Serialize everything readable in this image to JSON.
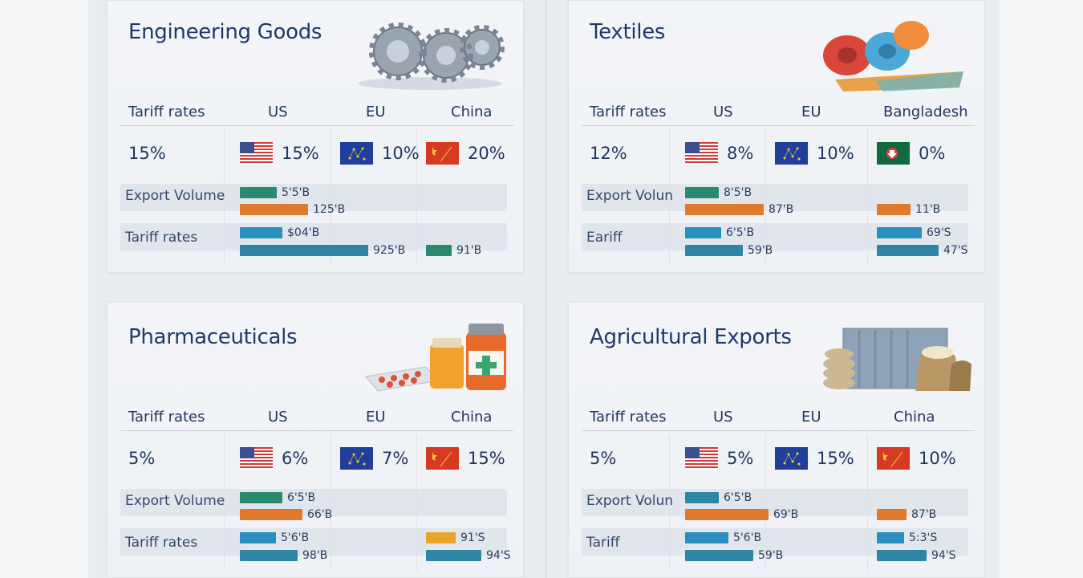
{
  "colors": {
    "title": "#1f3a68",
    "green": "#2a8a6e",
    "orange": "#e07a2a",
    "blue": "#2a8fc0",
    "teal": "#2e86a4",
    "yellow": "#e8a52a"
  },
  "cards": [
    {
      "title": "Engineering Goods",
      "illustration": "gears-icon",
      "header_label": "Tariff rates",
      "columns": [
        "US",
        "EU",
        "China"
      ],
      "base_rate": "15%",
      "flags": [
        {
          "icon": "us-flag-icon",
          "rate": "15%"
        },
        {
          "icon": "eu-flag-icon",
          "rate": "10%"
        },
        {
          "icon": "china-flag-icon",
          "rate": "20%"
        }
      ],
      "row_labels": [
        "Export Volume",
        "Tariff rates"
      ],
      "bars": [
        {
          "col": 0,
          "slot": 0,
          "level": 0.29,
          "color": "green",
          "label": "5'5'B"
        },
        {
          "col": 0,
          "slot": 1,
          "level": 0.53,
          "color": "orange",
          "label": "125'B"
        },
        {
          "col": 0,
          "slot": 2,
          "level": 0.33,
          "color": "blue",
          "label": "$04'B"
        },
        {
          "col": 0,
          "slot": 3,
          "level": 1.0,
          "color": "teal",
          "label": "925'B"
        },
        {
          "col": 2,
          "slot": 3,
          "level": 0.2,
          "color": "green",
          "label": "91'B"
        }
      ]
    },
    {
      "title": "Textiles",
      "illustration": "fabric-rolls-icon",
      "header_label": "Tariff rates",
      "columns": [
        "US",
        "EU",
        "Bangladesh"
      ],
      "base_rate": "12%",
      "flags": [
        {
          "icon": "us-flag-icon",
          "rate": "8%"
        },
        {
          "icon": "eu-flag-icon",
          "rate": "10%"
        },
        {
          "icon": "bangladesh-flag-icon",
          "rate": "0%"
        }
      ],
      "row_labels": [
        "Export Volun",
        "Eariff"
      ],
      "bars": [
        {
          "col": 0,
          "slot": 0,
          "level": 0.26,
          "color": "green",
          "label": "8'5'B"
        },
        {
          "col": 0,
          "slot": 1,
          "level": 0.61,
          "color": "orange",
          "label": "87'B"
        },
        {
          "col": 0,
          "slot": 2,
          "level": 0.28,
          "color": "blue",
          "label": "6'5'B"
        },
        {
          "col": 0,
          "slot": 3,
          "level": 0.45,
          "color": "teal",
          "label": "59'B"
        },
        {
          "col": 2,
          "slot": 1,
          "level": 0.26,
          "color": "orange",
          "label": "11'B"
        },
        {
          "col": 2,
          "slot": 2,
          "level": 0.35,
          "color": "blue",
          "label": "69'S"
        },
        {
          "col": 2,
          "slot": 3,
          "level": 0.48,
          "color": "teal",
          "label": "47'S"
        }
      ]
    },
    {
      "title": "Pharmaceuticals",
      "illustration": "medicine-bottles-icon",
      "header_label": "Tariff rates",
      "columns": [
        "US",
        "EU",
        "China"
      ],
      "base_rate": "5%",
      "flags": [
        {
          "icon": "us-flag-icon",
          "rate": "6%"
        },
        {
          "icon": "eu-flag-icon",
          "rate": "7%"
        },
        {
          "icon": "china-flag-icon",
          "rate": "15%"
        }
      ],
      "row_labels": [
        "Export Volume",
        "Tariff rates"
      ],
      "bars": [
        {
          "col": 0,
          "slot": 0,
          "level": 0.33,
          "color": "green",
          "label": "6'5'B"
        },
        {
          "col": 0,
          "slot": 1,
          "level": 0.49,
          "color": "orange",
          "label": "66'B"
        },
        {
          "col": 0,
          "slot": 2,
          "level": 0.28,
          "color": "blue",
          "label": "5'6'B"
        },
        {
          "col": 0,
          "slot": 3,
          "level": 0.45,
          "color": "teal",
          "label": "98'B"
        },
        {
          "col": 2,
          "slot": 2,
          "level": 0.23,
          "color": "yellow",
          "label": "91'S"
        },
        {
          "col": 2,
          "slot": 3,
          "level": 0.43,
          "color": "teal",
          "label": "94'S"
        }
      ]
    },
    {
      "title": "Agricultural Exports",
      "illustration": "cargo-container-sacks-icon",
      "header_label": "Tariff rates",
      "columns": [
        "US",
        "EU",
        "China"
      ],
      "base_rate": "5%",
      "flags": [
        {
          "icon": "us-flag-icon",
          "rate": "5%"
        },
        {
          "icon": "eu-flag-icon",
          "rate": "15%"
        },
        {
          "icon": "china-flag-icon",
          "rate": "10%"
        }
      ],
      "row_labels": [
        "Export Volun",
        "Tariff"
      ],
      "bars": [
        {
          "col": 0,
          "slot": 0,
          "level": 0.26,
          "color": "teal",
          "label": "6'5'B"
        },
        {
          "col": 0,
          "slot": 1,
          "level": 0.65,
          "color": "orange",
          "label": "69'B"
        },
        {
          "col": 0,
          "slot": 2,
          "level": 0.34,
          "color": "blue",
          "label": "5'6'B"
        },
        {
          "col": 0,
          "slot": 3,
          "level": 0.53,
          "color": "teal",
          "label": "59'B"
        },
        {
          "col": 2,
          "slot": 1,
          "level": 0.23,
          "color": "orange",
          "label": "87'B"
        },
        {
          "col": 2,
          "slot": 2,
          "level": 0.21,
          "color": "blue",
          "label": "5:3'S"
        },
        {
          "col": 2,
          "slot": 3,
          "level": 0.39,
          "color": "teal",
          "label": "94'S"
        }
      ]
    }
  ]
}
